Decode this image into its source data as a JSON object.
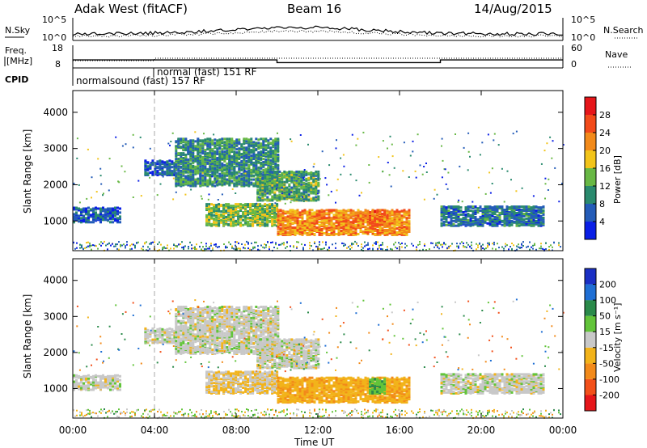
{
  "header": {
    "radar": "Adak West (fitACF)",
    "beam": "Beam 16",
    "date": "14/Aug/2015"
  },
  "summary": {
    "left_labels": [
      "N.Sky",
      "Freq.",
      "[MHz]",
      "CPID"
    ],
    "right_labels": [
      "N.Search",
      "Nave"
    ],
    "nsky_ticks": [
      "10^5",
      "10^0"
    ],
    "nsearch_ticks": [
      "10^5",
      "10^0"
    ],
    "freq_ticks": [
      "18",
      "8"
    ],
    "nave_ticks": [
      "60",
      "0"
    ],
    "cpid_labels": [
      "normalsound (fast) 157 RF",
      "normal (fast)  151 RF"
    ]
  },
  "panels": {
    "ylabel": "Slant Range [km]",
    "xlabel": "Time UT",
    "yticks": [
      "1000",
      "2000",
      "3000",
      "4000"
    ],
    "xticks": [
      "00:00",
      "04:00",
      "08:00",
      "12:00",
      "16:00",
      "20:00",
      "00:00"
    ]
  },
  "colorbars": {
    "power": {
      "label": "Power [dB]",
      "ticks": [
        "4",
        "8",
        "12",
        "16",
        "20",
        "24",
        "28"
      ],
      "colors": [
        "#0a1fe6",
        "#245cb8",
        "#2a8a6e",
        "#68b845",
        "#f2c41a",
        "#f28a1a",
        "#f24a1a",
        "#e6161a"
      ]
    },
    "velocity": {
      "label": "Velocity [m s⁻¹]",
      "ticks": [
        "200",
        "100",
        "50",
        "15",
        "-15",
        "-50",
        "-100",
        "-200"
      ],
      "colors": [
        "#1a2fc4",
        "#1f6fd4",
        "#2a8a4a",
        "#62c43a",
        "#c8c8c8",
        "#f2b31a",
        "#f28a1a",
        "#f2501a",
        "#e6161a"
      ]
    }
  },
  "chart_data": {
    "type": "heatmap",
    "title": "Adak West (fitACF)  Beam 16  14/Aug/2015",
    "xlabel": "Time UT",
    "ylabel": "Slant Range [km]",
    "xlim": [
      "00:00",
      "24:00"
    ],
    "ylim": [
      180,
      4600
    ],
    "series": [
      {
        "name": "Power [dB]",
        "range": [
          0,
          30
        ]
      },
      {
        "name": "Velocity [m s⁻¹]",
        "range": [
          -200,
          200
        ]
      }
    ],
    "echo_regions": [
      {
        "t_start": 0.0,
        "t_end": 2.3,
        "range_km": [
          1000,
          1400
        ],
        "power_db": 6,
        "velocity": 0
      },
      {
        "t_start": 3.5,
        "t_end": 5.0,
        "range_km": [
          2300,
          2700
        ],
        "power_db": 6,
        "velocity": 0
      },
      {
        "t_start": 5.0,
        "t_end": 10.0,
        "range_km": [
          2000,
          3300
        ],
        "power_db": 10,
        "velocity": 0
      },
      {
        "t_start": 9.0,
        "t_end": 12.0,
        "range_km": [
          1600,
          2400
        ],
        "power_db": 12,
        "velocity": 0
      },
      {
        "t_start": 6.5,
        "t_end": 10.0,
        "range_km": [
          900,
          1500
        ],
        "power_db": 14,
        "velocity": -15
      },
      {
        "t_start": 10.0,
        "t_end": 16.5,
        "range_km": [
          650,
          1350
        ],
        "power_db": 22,
        "velocity": -40
      },
      {
        "t_start": 14.5,
        "t_end": 15.3,
        "range_km": [
          900,
          1300
        ],
        "power_db": 24,
        "velocity": 40
      },
      {
        "t_start": 18.0,
        "t_end": 23.0,
        "range_km": [
          900,
          1450
        ],
        "power_db": 8,
        "velocity": 0
      }
    ],
    "cpid": [
      {
        "t_start": 0.0,
        "t_end": 4.0,
        "label": "normalsound (fast) 157 RF"
      },
      {
        "t_start": 4.0,
        "t_end": 24.0,
        "label": "normal (fast)  151 RF"
      }
    ],
    "freq_mhz": [
      {
        "t_start": 0.0,
        "t_end": 10.0,
        "value": 12.5
      },
      {
        "t_start": 10.0,
        "t_end": 18.0,
        "value": 11.0
      },
      {
        "t_start": 18.0,
        "t_end": 24.0,
        "value": 12.5
      }
    ]
  }
}
